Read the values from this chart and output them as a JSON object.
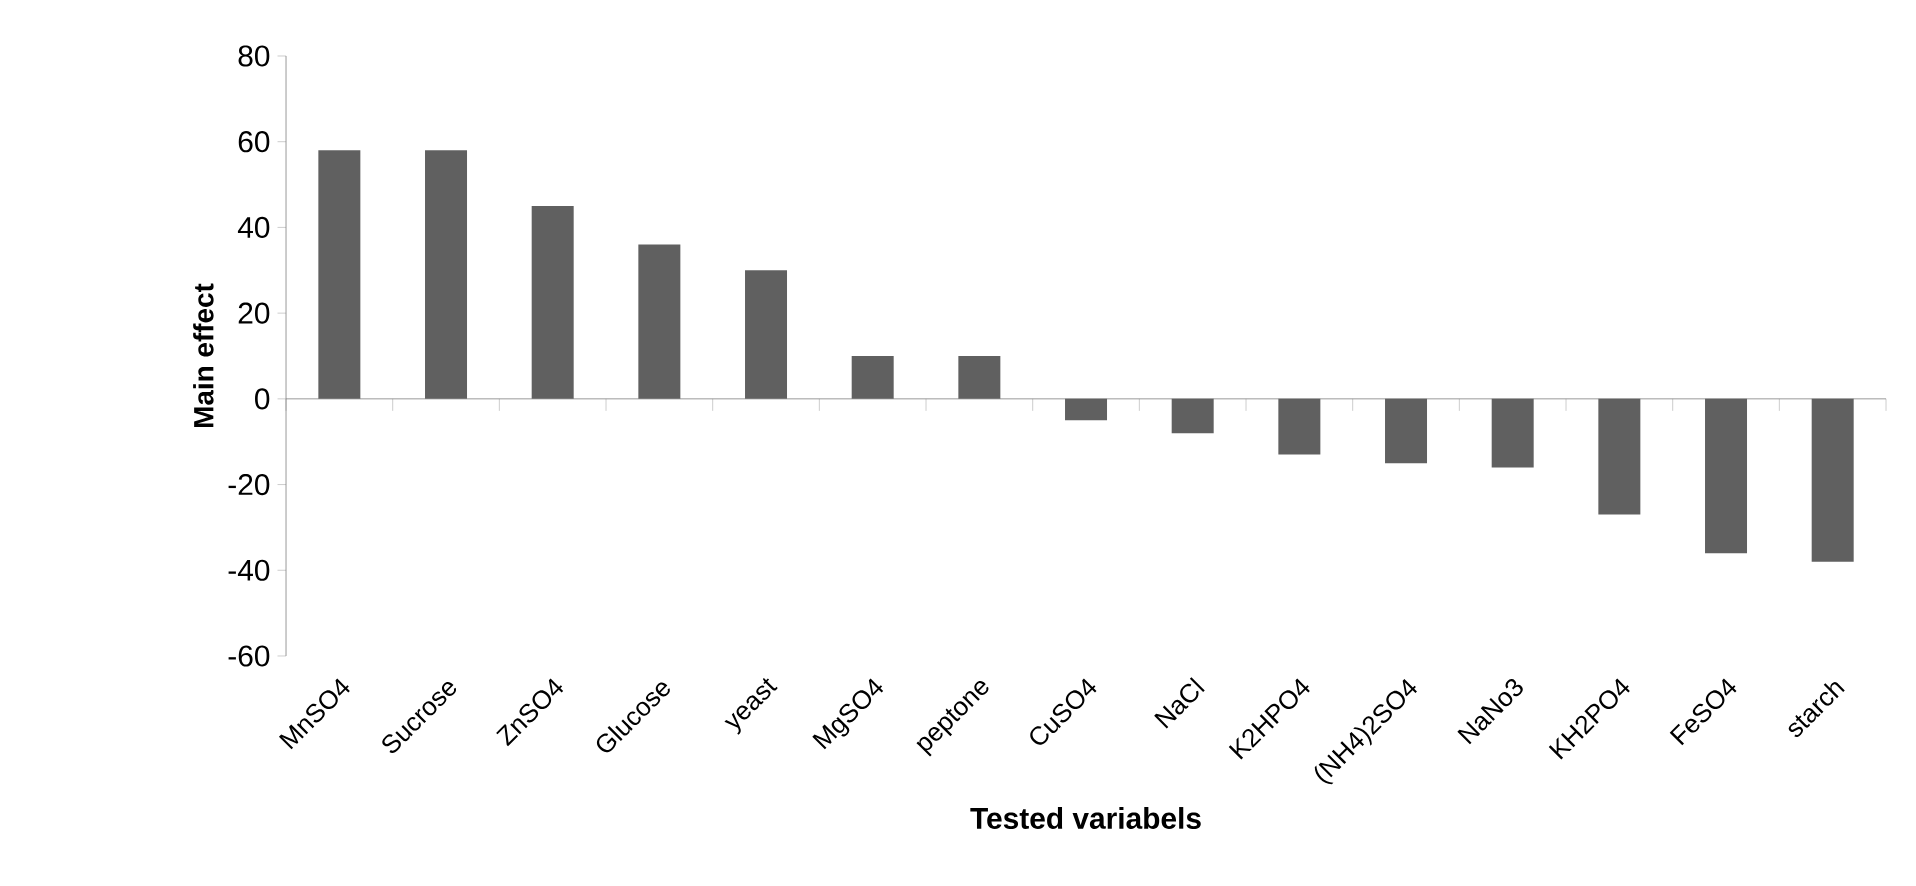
{
  "chart_data": {
    "type": "bar",
    "xlabel": "Tested variabels",
    "ylabel": "Main effect",
    "categories": [
      "MnSO4",
      "Sucrose",
      "ZnSO4",
      "Glucose",
      "yeast",
      "MgSO4",
      "peptone",
      "CuSO4",
      "NaCl",
      "K2HPO4",
      "(NH4)2SO4",
      "NaNo3",
      "KH2PO4",
      "FeSO4",
      "starch"
    ],
    "values": [
      58,
      58,
      45,
      36,
      30,
      10,
      10,
      -5,
      -8,
      -13,
      -15,
      -16,
      -27,
      -36,
      -38
    ],
    "color": "#606060",
    "ylim": [
      -60,
      80
    ],
    "yticks": [
      -60,
      -40,
      -20,
      0,
      20,
      40,
      60,
      80
    ]
  }
}
